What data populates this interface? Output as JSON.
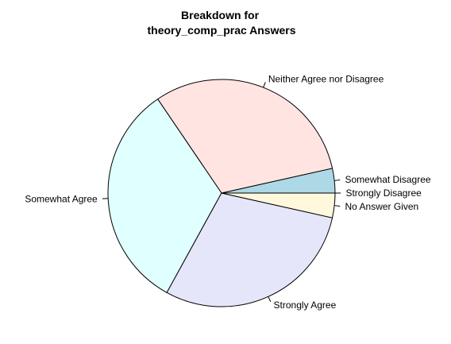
{
  "chart_data": {
    "type": "pie",
    "title": "Breakdown for\ntheory_comp_prac Answers",
    "categories": [
      "Somewhat Disagree",
      "Neither Agree nor Disagree",
      "Somewhat Agree",
      "Strongly Agree",
      "No Answer Given",
      "Strongly Disagree"
    ],
    "values": [
      3.5,
      31.0,
      32.5,
      29.5,
      3.5,
      0
    ],
    "colors": [
      "#ADD8E6",
      "#FFE4E1",
      "#E0FFFF",
      "#E6E6FA",
      "#FFF8DC",
      "#F0F8FF"
    ]
  }
}
